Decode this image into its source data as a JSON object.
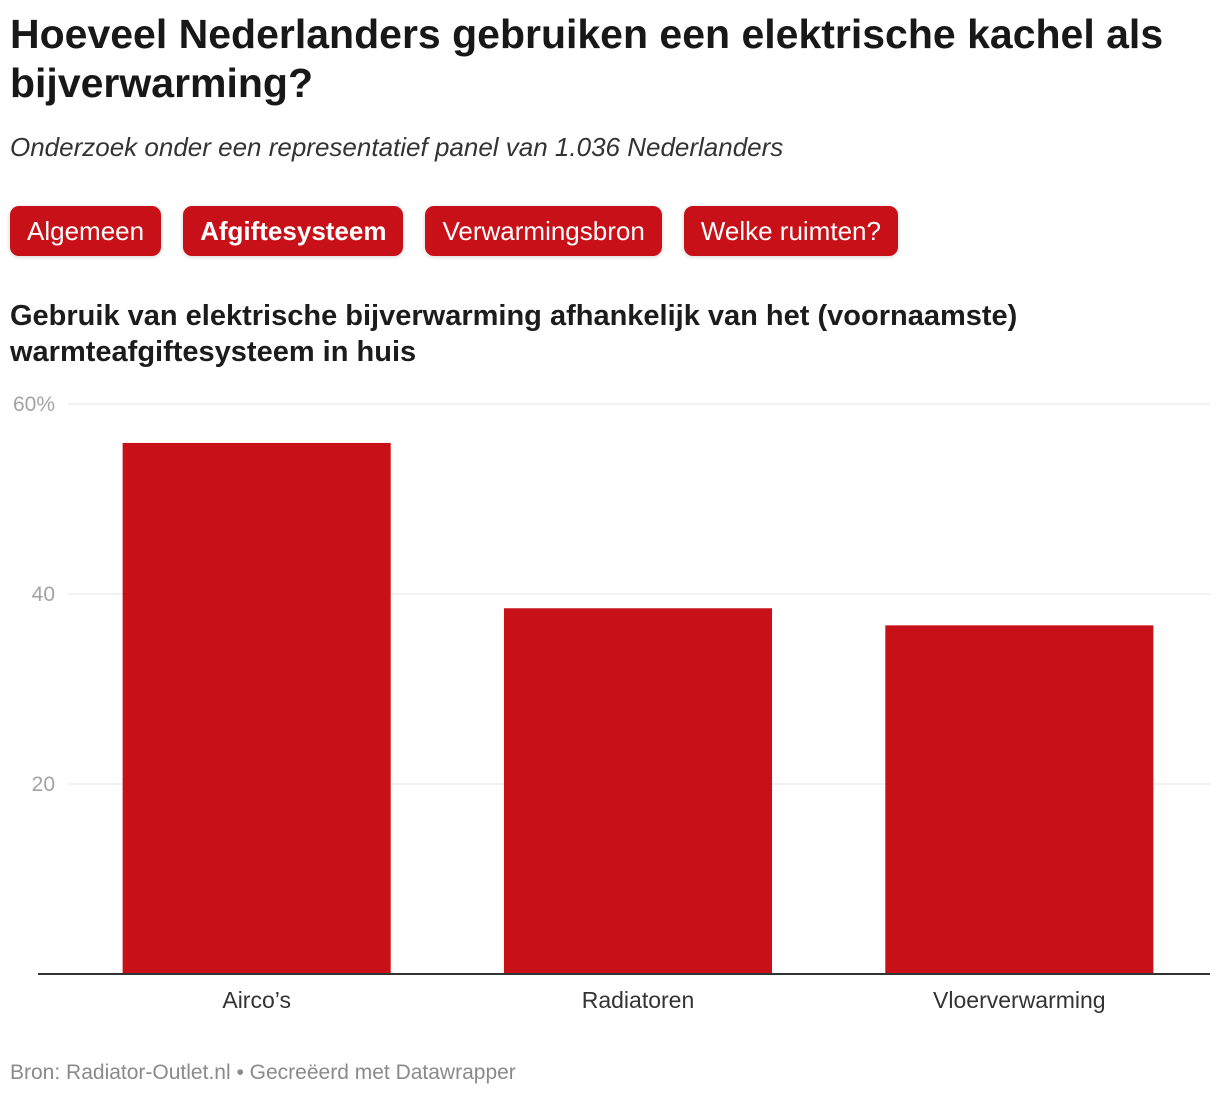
{
  "title": "Hoeveel Nederlanders gebruiken een elektrische kachel als bijverwarming?",
  "subtitle": "Onderzoek onder een representatief panel van 1.036 Nederlanders",
  "tabs": [
    {
      "label": "Algemeen",
      "active": false
    },
    {
      "label": "Afgiftesysteem",
      "active": true
    },
    {
      "label": "Verwarmingsbron",
      "active": false
    },
    {
      "label": "Welke ruimten?",
      "active": false
    }
  ],
  "colors": {
    "accent": "#c81018",
    "bar": "#c81018",
    "grid": "#e3e3e3",
    "axis": "#333333",
    "tick_label": "#a3a3a3",
    "category_label": "#333333"
  },
  "chart_data": {
    "type": "bar",
    "title": "Gebruik van elektrische bijverwarming afhankelijk van het (voornaamste) warmteafgiftesysteem in huis",
    "categories": [
      "Airco’s",
      "Radiatoren",
      "Vloerverwarming"
    ],
    "values": [
      55.9,
      38.5,
      36.7
    ],
    "xlabel": "",
    "ylabel": "",
    "ylim": [
      0,
      60
    ],
    "yticks": [
      {
        "value": 20,
        "label": "20"
      },
      {
        "value": 40,
        "label": "40"
      },
      {
        "value": 60,
        "label": "60%"
      }
    ],
    "grid": true
  },
  "footer": {
    "source_prefix": "Bron:",
    "source": "Radiator-Outlet.nl",
    "separator": "•",
    "credit": "Gecreëerd met Datawrapper"
  }
}
